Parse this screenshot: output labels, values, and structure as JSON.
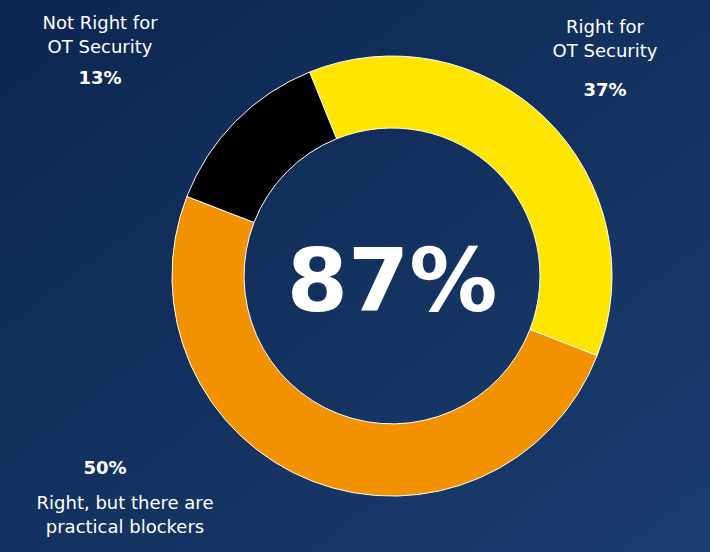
{
  "chart_data": {
    "type": "pie",
    "categories": [
      "Right for OT Security",
      "Right, but there are practical blockers",
      "Not Right for OT Security"
    ],
    "values": [
      37,
      50,
      13
    ],
    "value_labels": [
      "37%",
      "50%",
      "13%"
    ],
    "colors": [
      "#ffe600",
      "#f39200",
      "#000000"
    ],
    "data_labels": true,
    "annotations": [
      {
        "text": "87%"
      }
    ]
  }
}
